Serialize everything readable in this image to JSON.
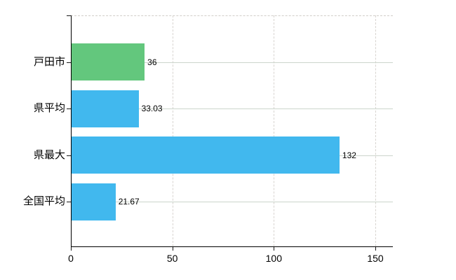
{
  "chart_data": {
    "type": "bar",
    "orientation": "horizontal",
    "title": "",
    "xlabel": "",
    "ylabel": "",
    "categories": [
      "戸田市",
      "県平均",
      "県最大",
      "全国平均"
    ],
    "values": [
      36,
      33.03,
      132,
      21.67
    ],
    "value_labels": [
      "36",
      "33.03",
      "132",
      "21.67"
    ],
    "series": [
      {
        "name": "戸田市",
        "value": 36,
        "color": "#63c77d",
        "pattern": "dots"
      },
      {
        "name": "県平均",
        "value": 33.03,
        "color": "#41b8ee",
        "pattern": "solid"
      },
      {
        "name": "県最大",
        "value": 132,
        "color": "#41b8ee",
        "pattern": "solid"
      },
      {
        "name": "全国平均",
        "value": 21.67,
        "color": "#41b8ee",
        "pattern": "solid"
      }
    ],
    "xlim": [
      0,
      150
    ],
    "x_ticks": [
      0,
      50,
      100,
      150
    ],
    "x_tick_labels": [
      "0",
      "50",
      "100",
      "150"
    ],
    "grid": true,
    "legend": false,
    "colors": {
      "bar_blue": "#41b8ee",
      "bar_green": "#63c77d",
      "axis": "#000000",
      "grid_horizontal": "#ccd5cc",
      "grid_vertical": "#d8d4d0",
      "text": "#000000",
      "background": "#ffffff"
    }
  }
}
